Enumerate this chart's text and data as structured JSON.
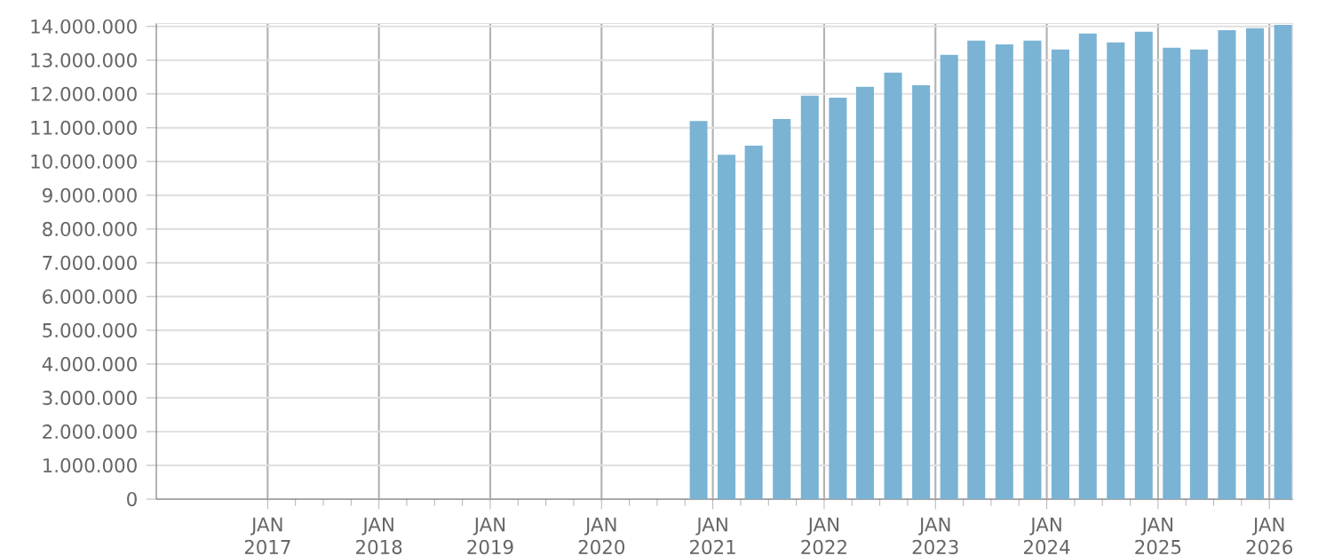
{
  "chart_data": {
    "type": "bar",
    "x": [
      "2020-11-15",
      "2021-02-15",
      "2021-05-15",
      "2021-08-15",
      "2021-11-15",
      "2022-02-15",
      "2022-05-15",
      "2022-08-15",
      "2022-11-15",
      "2023-02-15",
      "2023-05-15",
      "2023-08-15",
      "2023-11-15",
      "2024-02-15",
      "2024-05-15",
      "2024-08-15",
      "2024-11-15",
      "2025-02-15",
      "2025-05-15",
      "2025-08-15",
      "2025-11-15",
      "2026-02-15"
    ],
    "values": [
      11200000,
      10200000,
      10470000,
      11260000,
      11950000,
      11890000,
      12210000,
      12630000,
      12260000,
      13160000,
      13580000,
      13470000,
      13580000,
      13320000,
      13790000,
      13530000,
      13840000,
      13370000,
      13320000,
      13890000,
      13950000,
      14050000
    ],
    "color": "#7ab3d4",
    "xlim": [
      "2016-01-01",
      "2026-03-20"
    ],
    "xticks": [
      {
        "value": "2017-01-01",
        "label": "JAN 2017"
      },
      {
        "value": "2018-01-01",
        "label": "JAN 2018"
      },
      {
        "value": "2019-01-01",
        "label": "JAN 2019"
      },
      {
        "value": "2020-01-01",
        "label": "JAN 2020"
      },
      {
        "value": "2021-01-01",
        "label": "JAN 2021"
      },
      {
        "value": "2022-01-01",
        "label": "JAN 2022"
      },
      {
        "value": "2023-01-01",
        "label": "JAN 2023"
      },
      {
        "value": "2024-01-01",
        "label": "JAN 2024"
      },
      {
        "value": "2025-01-01",
        "label": "JAN 2025"
      },
      {
        "value": "2026-01-01",
        "label": "JAN 2026"
      }
    ],
    "ylim": [
      0,
      14100000
    ],
    "yticks": [
      0,
      {
        "value": 1000000,
        "label": "1.000.000"
      },
      {
        "value": 2000000,
        "label": "2.000.000"
      },
      {
        "value": 3000000,
        "label": "3.000.000"
      },
      {
        "value": 4000000,
        "label": "4.000.000"
      },
      {
        "value": 5000000,
        "label": "5.000.000"
      },
      {
        "value": 6000000,
        "label": "6.000.000"
      },
      {
        "value": 7000000,
        "label": "7.000.000"
      },
      {
        "value": 8000000,
        "label": "8.000.000"
      },
      {
        "value": 9000000,
        "label": "9.000.000"
      },
      {
        "value": 10000000,
        "label": "10.000.000"
      },
      {
        "value": 11000000,
        "label": "11.000.000"
      },
      {
        "value": 12000000,
        "label": "12.000.000"
      },
      {
        "value": 13000000,
        "label": "13.000.000"
      },
      {
        "value": 14000000,
        "label": "14.000.000"
      }
    ],
    "grid": true
  }
}
